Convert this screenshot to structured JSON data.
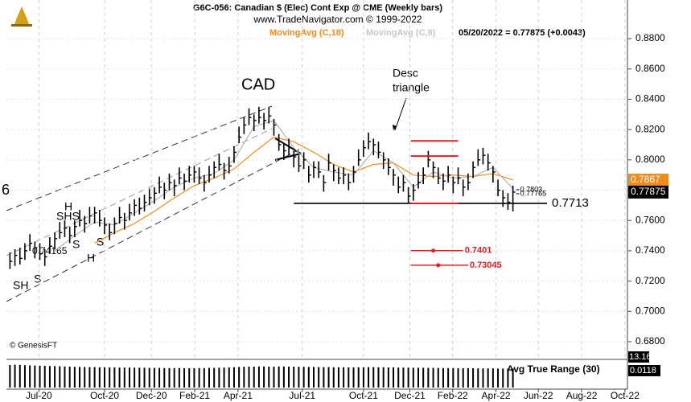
{
  "chart_data": {
    "type": "ohlc",
    "title": "G6C-056:  Canadian $ (Elec) Cont Exp @ CME  (Weekly bars)",
    "subtitle": "www.TradeNavigator.com © 1999-2022",
    "last_quote": "05/20/2022 = 0.77875 (+0.0043)",
    "credit": "© GenesisFT",
    "annotations": [
      "CAD",
      "Desc",
      "triangle",
      "6",
      "SHS",
      "S",
      "H",
      "S",
      "SH",
      "S",
      "H",
      "0.74165"
    ],
    "categories": [
      null,
      null,
      null,
      null,
      null,
      null,
      null,
      null,
      null,
      null,
      null,
      null,
      null,
      null,
      null,
      null,
      null,
      null,
      null,
      null,
      null,
      null,
      null,
      null,
      null,
      null,
      null,
      null,
      null,
      null,
      null,
      null,
      null,
      null,
      null,
      null,
      null,
      null,
      null,
      null,
      null,
      null,
      null,
      null,
      null,
      null,
      null,
      null,
      null,
      null,
      null,
      null,
      null,
      null,
      null,
      null,
      null,
      null,
      null,
      null,
      null,
      null,
      null,
      null,
      null,
      null,
      null,
      null,
      null,
      null,
      null,
      null,
      null,
      null,
      null,
      null,
      null,
      null,
      null,
      null,
      null,
      null,
      null,
      null,
      null,
      null,
      null,
      null,
      null,
      null,
      null,
      null,
      null,
      null,
      null,
      null,
      null,
      null,
      null,
      null,
      null,
      null
    ],
    "high": [
      0.739,
      0.741,
      0.742,
      0.745,
      0.751,
      0.746,
      0.745,
      0.741,
      0.749,
      0.752,
      0.759,
      0.76,
      0.756,
      0.76,
      0.767,
      0.763,
      0.769,
      0.769,
      0.767,
      0.762,
      0.758,
      0.762,
      0.769,
      0.765,
      0.771,
      0.774,
      0.775,
      0.777,
      0.781,
      0.782,
      0.789,
      0.785,
      0.791,
      0.787,
      0.795,
      0.791,
      0.796,
      0.796,
      0.795,
      0.79,
      0.796,
      0.799,
      0.804,
      0.798,
      0.802,
      0.809,
      0.822,
      0.828,
      0.834,
      0.83,
      0.835,
      0.831,
      0.835,
      0.827,
      0.817,
      0.811,
      0.814,
      0.806,
      0.803,
      0.805,
      0.796,
      0.799,
      0.799,
      0.79,
      0.804,
      0.797,
      0.795,
      0.795,
      0.791,
      0.796,
      0.807,
      0.813,
      0.818,
      0.814,
      0.812,
      0.805,
      0.801,
      0.794,
      0.789,
      0.79,
      0.782,
      0.784,
      0.792,
      0.795,
      0.806,
      0.799,
      0.795,
      0.791,
      0.796,
      0.789,
      0.795,
      0.787,
      0.791,
      0.799,
      0.807,
      0.808,
      0.804,
      0.796,
      0.787,
      0.78,
      0.778,
      0.783
    ],
    "low": [
      0.728,
      0.73,
      0.731,
      0.734,
      0.74,
      0.735,
      0.734,
      0.73,
      0.738,
      0.741,
      0.748,
      0.749,
      0.745,
      0.749,
      0.756,
      0.752,
      0.758,
      0.758,
      0.756,
      0.751,
      0.747,
      0.751,
      0.758,
      0.754,
      0.76,
      0.763,
      0.764,
      0.766,
      0.77,
      0.771,
      0.778,
      0.774,
      0.78,
      0.776,
      0.784,
      0.78,
      0.785,
      0.785,
      0.784,
      0.779,
      0.785,
      0.788,
      0.793,
      0.787,
      0.791,
      0.798,
      0.811,
      0.817,
      0.823,
      0.819,
      0.824,
      0.82,
      0.824,
      0.816,
      0.806,
      0.8,
      0.803,
      0.795,
      0.792,
      0.794,
      0.785,
      0.788,
      0.788,
      0.779,
      0.793,
      0.786,
      0.784,
      0.784,
      0.78,
      0.785,
      0.796,
      0.802,
      0.807,
      0.803,
      0.801,
      0.794,
      0.79,
      0.783,
      0.778,
      0.779,
      0.771,
      0.773,
      0.781,
      0.784,
      0.795,
      0.788,
      0.784,
      0.78,
      0.785,
      0.778,
      0.784,
      0.776,
      0.78,
      0.788,
      0.796,
      0.797,
      0.793,
      0.785,
      0.776,
      0.769,
      0.767,
      0.766
    ],
    "close": [
      0.733,
      0.737,
      0.735,
      0.74,
      0.745,
      0.742,
      0.738,
      0.736,
      0.743,
      0.748,
      0.752,
      0.755,
      0.75,
      0.756,
      0.76,
      0.758,
      0.763,
      0.765,
      0.76,
      0.757,
      0.752,
      0.758,
      0.762,
      0.76,
      0.765,
      0.77,
      0.768,
      0.772,
      0.775,
      0.778,
      0.782,
      0.78,
      0.785,
      0.783,
      0.788,
      0.786,
      0.79,
      0.792,
      0.788,
      0.785,
      0.79,
      0.795,
      0.797,
      0.793,
      0.796,
      0.805,
      0.815,
      0.823,
      0.828,
      0.826,
      0.828,
      0.826,
      0.829,
      0.823,
      0.81,
      0.806,
      0.808,
      0.802,
      0.796,
      0.8,
      0.79,
      0.795,
      0.792,
      0.785,
      0.798,
      0.793,
      0.788,
      0.79,
      0.785,
      0.792,
      0.8,
      0.808,
      0.812,
      0.81,
      0.805,
      0.8,
      0.795,
      0.79,
      0.782,
      0.785,
      0.776,
      0.78,
      0.785,
      0.79,
      0.8,
      0.795,
      0.788,
      0.786,
      0.79,
      0.785,
      0.788,
      0.782,
      0.785,
      0.795,
      0.8,
      0.803,
      0.798,
      0.792,
      0.78,
      0.775,
      0.772,
      0.77875
    ],
    "series": [
      {
        "name": "MovingAvg (C,18)",
        "color": "#f08c1e",
        "x": [
          17,
          21,
          25,
          29,
          33,
          37,
          41,
          45,
          49,
          53,
          57,
          61,
          65,
          69,
          73,
          77,
          81,
          85,
          89,
          93,
          97,
          101
        ],
        "values": [
          0.745,
          0.752,
          0.758,
          0.766,
          0.775,
          0.783,
          0.788,
          0.794,
          0.805,
          0.815,
          0.812,
          0.805,
          0.797,
          0.792,
          0.797,
          0.798,
          0.79,
          0.789,
          0.79,
          0.789,
          0.791,
          0.7867
        ]
      },
      {
        "name": "MovingAvg (C,8)",
        "color": "#b4b4b4",
        "x": [
          9,
          13,
          17,
          21,
          25,
          29,
          33,
          37,
          41,
          45,
          49,
          53,
          57,
          61,
          65,
          69,
          73,
          77,
          81,
          85,
          89,
          93,
          97,
          101
        ],
        "values": [
          0.74,
          0.75,
          0.759,
          0.757,
          0.765,
          0.773,
          0.782,
          0.788,
          0.791,
          0.8,
          0.822,
          0.826,
          0.808,
          0.795,
          0.792,
          0.79,
          0.806,
          0.798,
          0.782,
          0.792,
          0.788,
          0.789,
          0.795,
          0.781
        ]
      }
    ],
    "support": 0.7713,
    "red_levels": [
      0.8125,
      0.8025,
      0.7713
    ],
    "targets": [
      0.7401,
      0.73045
    ],
    "small_levels": [
      0.7803,
      0.77765
    ],
    "xlim": [
      -2,
      124
    ],
    "xticks": [
      {
        "value": 5.8,
        "label": "Jul-20"
      },
      {
        "value": 19,
        "label": "Oct-20"
      },
      {
        "value": 28.4,
        "label": "Dec-20"
      },
      {
        "value": 37.1,
        "label": "Feb-21"
      },
      {
        "value": 45.8,
        "label": "Apr-21"
      },
      {
        "value": 58.7,
        "label": "Jul-21"
      },
      {
        "value": 71,
        "label": "Oct-21"
      },
      {
        "value": 80.3,
        "label": "Dec-21"
      },
      {
        "value": 88.9,
        "label": "Feb-22"
      },
      {
        "value": 97.6,
        "label": "Apr-22"
      },
      {
        "value": 106.1,
        "label": "Jun-22"
      },
      {
        "value": 114.8,
        "label": "Aug-22"
      },
      {
        "value": 123.5,
        "label": "Oct-22"
      }
    ],
    "ylim": [
      0.6694,
      0.9055
    ],
    "yticks": [
      {
        "value": 0.88,
        "label": "0.8800"
      },
      {
        "value": 0.86,
        "label": "0.8600"
      },
      {
        "value": 0.84,
        "label": "0.8400"
      },
      {
        "value": 0.82,
        "label": "0.8200"
      },
      {
        "value": 0.8,
        "label": "0.8000"
      },
      {
        "value": 0.78,
        "label": "0.7800"
      },
      {
        "value": 0.76,
        "label": "0.7600"
      },
      {
        "value": 0.74,
        "label": "0.7400"
      },
      {
        "value": 0.72,
        "label": "0.7200"
      },
      {
        "value": 0.7,
        "label": "0.7000"
      },
      {
        "value": 0.68,
        "label": "0.6800"
      }
    ],
    "grid": true,
    "atr": {
      "name": "Avg True Range (30)",
      "top_label": "13.16",
      "ylim": [
        0,
        0.016
      ],
      "values": [
        0.014,
        0.0142,
        0.0141,
        0.0139,
        0.0138,
        0.0137,
        0.0136,
        0.0135,
        0.0134,
        0.0133,
        0.0132,
        0.0131,
        0.013,
        0.0129,
        0.0128,
        0.0128,
        0.0127,
        0.0127,
        0.0126,
        0.0126,
        0.0125,
        0.0125,
        0.0124,
        0.0124,
        0.0124,
        0.0123,
        0.0123,
        0.0123,
        0.0122,
        0.0122,
        0.0122,
        0.0121,
        0.0121,
        0.0121,
        0.0121,
        0.012,
        0.012,
        0.012,
        0.0121,
        0.0121,
        0.0122,
        0.0122,
        0.0123,
        0.0124,
        0.0125,
        0.0126,
        0.0128,
        0.0129,
        0.013,
        0.013,
        0.0131,
        0.0131,
        0.013,
        0.013,
        0.0131,
        0.0131,
        0.013,
        0.013,
        0.0129,
        0.0129,
        0.0128,
        0.0128,
        0.0127,
        0.0127,
        0.0127,
        0.0126,
        0.0126,
        0.0126,
        0.0125,
        0.0125,
        0.0126,
        0.0126,
        0.0127,
        0.0127,
        0.0126,
        0.0126,
        0.0125,
        0.0125,
        0.0124,
        0.0124,
        0.0124,
        0.0123,
        0.0123,
        0.0123,
        0.0122,
        0.0122,
        0.0122,
        0.0121,
        0.0121,
        0.0121,
        0.012,
        0.012,
        0.012,
        0.012,
        0.0119,
        0.0119,
        0.0119,
        0.0119,
        0.0118,
        0.0118,
        0.0118,
        0.0118
      ]
    }
  }
}
